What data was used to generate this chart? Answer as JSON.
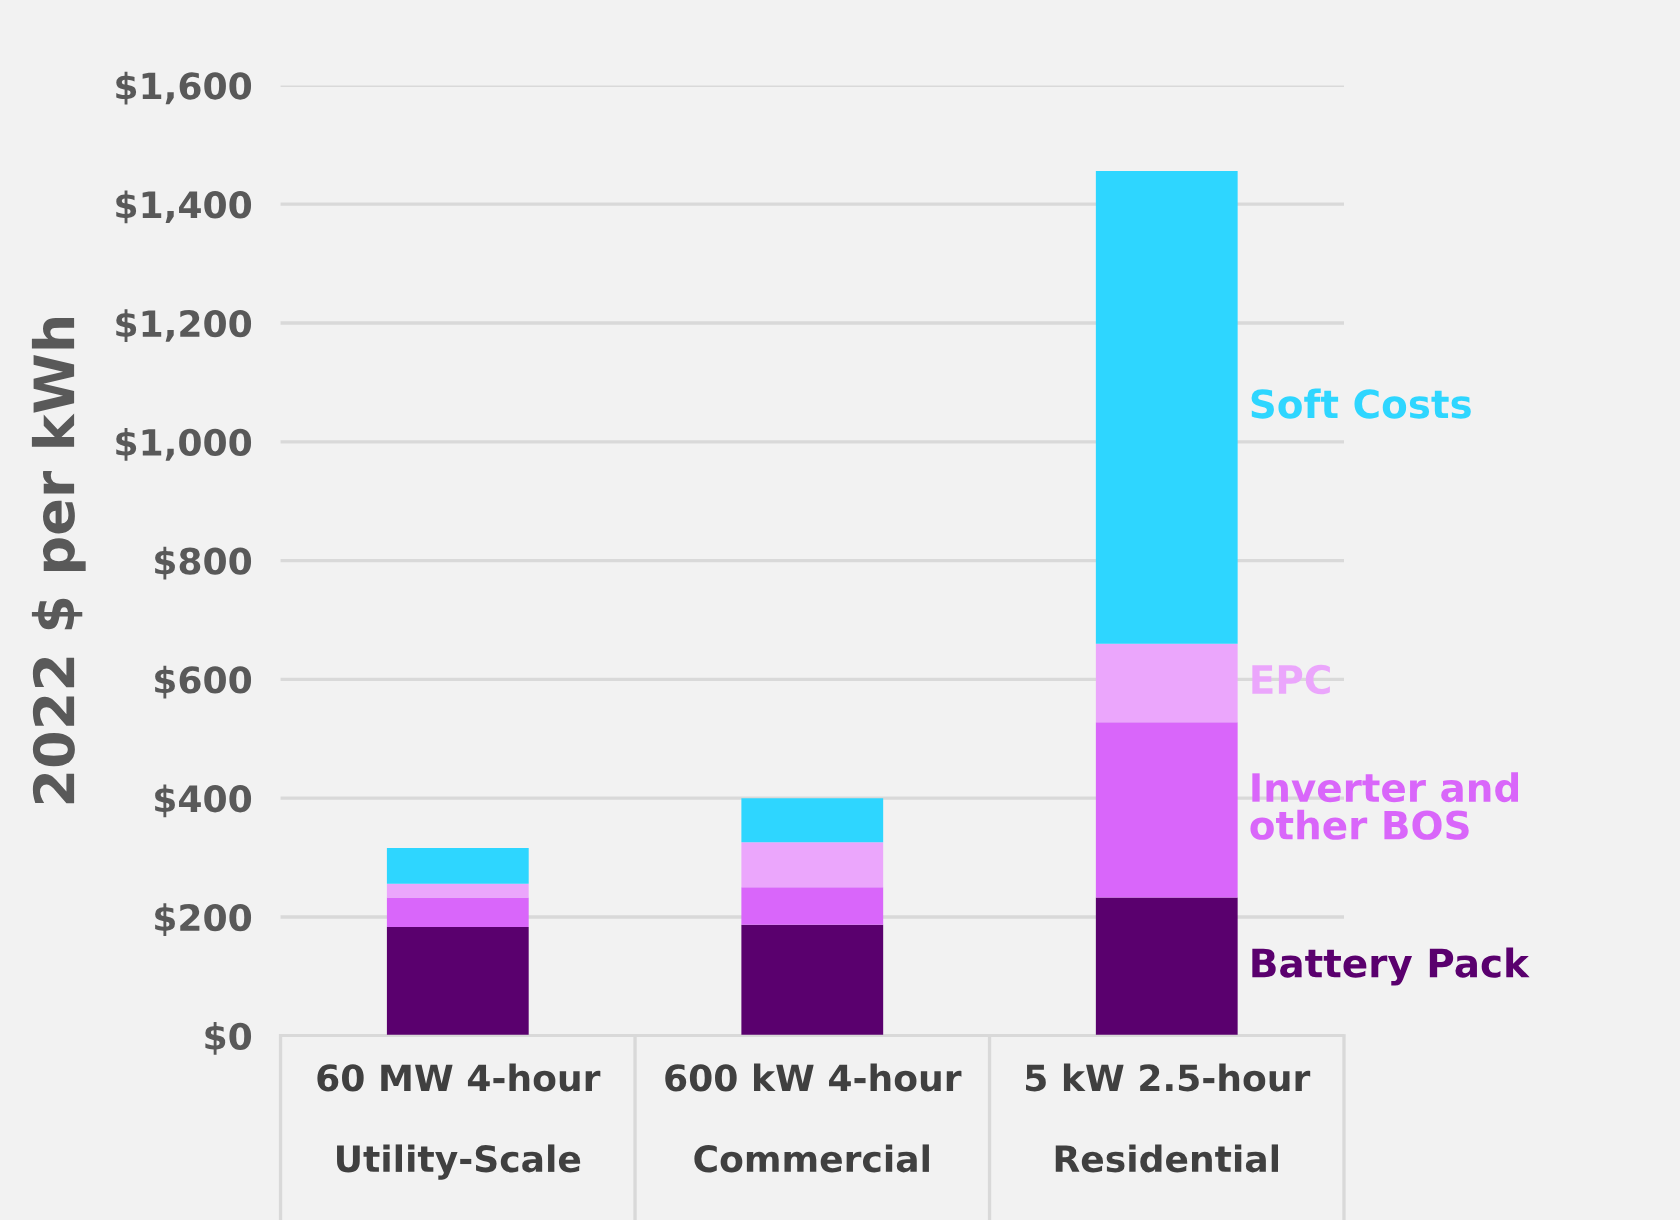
{
  "chart_data": {
    "type": "bar",
    "stacked": true,
    "ylabel": "2022 $ per kWh",
    "categories": [
      "60 MW 4-hour\n\nUtility-Scale",
      "600 kW 4-hour\n\nCommercial",
      "5 kW 2.5-hour\n\nResidential"
    ],
    "series": [
      {
        "name": "Battery Pack",
        "color": "#5a006e",
        "values": [
          183,
          187,
          233
        ]
      },
      {
        "name": "Inverter and\nother BOS",
        "color": "#d966fa",
        "values": [
          50,
          63,
          295
        ]
      },
      {
        "name": "EPC",
        "color": "#eba6fc",
        "values": [
          23,
          76,
          132
        ]
      },
      {
        "name": "Soft Costs",
        "color": "#2ed6ff",
        "values": [
          60,
          74,
          796
        ]
      }
    ],
    "ylim": [
      0,
      1600
    ],
    "yticks": [
      {
        "value": 0,
        "label": "$0"
      },
      {
        "value": 200,
        "label": "$200"
      },
      {
        "value": 400,
        "label": "$400"
      },
      {
        "value": 600,
        "label": "$600"
      },
      {
        "value": 800,
        "label": "$800"
      },
      {
        "value": 1000,
        "label": "$1,000"
      },
      {
        "value": 1200,
        "label": "$1,200"
      },
      {
        "value": 1400,
        "label": "$1,400"
      },
      {
        "value": 1600,
        "label": "$1,600"
      }
    ],
    "grid": "y",
    "legend": false
  }
}
